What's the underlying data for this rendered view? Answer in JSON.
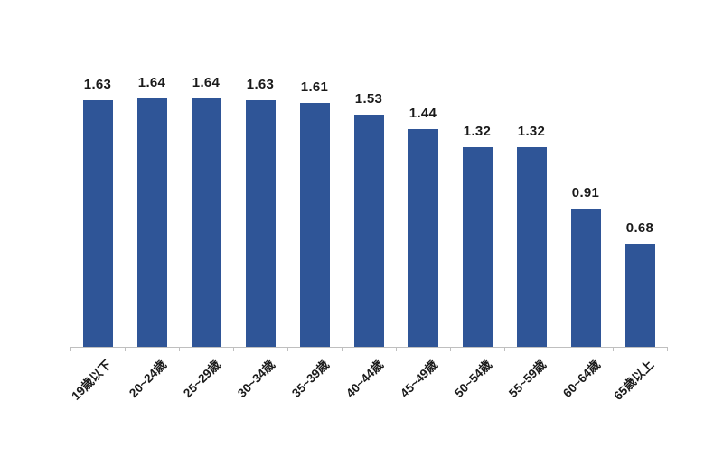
{
  "chart_data": {
    "type": "bar",
    "title": "",
    "xlabel": "",
    "ylabel": "",
    "categories": [
      "19歳以下",
      "20~24歳",
      "25~29歳",
      "30~34歳",
      "35~39歳",
      "40~44歳",
      "45~49歳",
      "50~54歳",
      "55~59歳",
      "60~64歳",
      "65歳以上"
    ],
    "values": [
      1.63,
      1.64,
      1.64,
      1.63,
      1.61,
      1.53,
      1.44,
      1.32,
      1.32,
      0.91,
      0.68
    ],
    "value_labels": [
      "1.63",
      "1.64",
      "1.64",
      "1.63",
      "1.61",
      "1.53",
      "1.44",
      "1.32",
      "1.32",
      "0.91",
      "0.68"
    ],
    "ylim": [
      0,
      1.8
    ],
    "grid": false,
    "legend": "none",
    "y_axis_visible": false,
    "x_tick_rotation_deg": 45,
    "colors": {
      "bar": "#2F5597",
      "axis": "#BFBFBF",
      "text": "#1A1A1A",
      "background": "#FFFFFF"
    }
  }
}
